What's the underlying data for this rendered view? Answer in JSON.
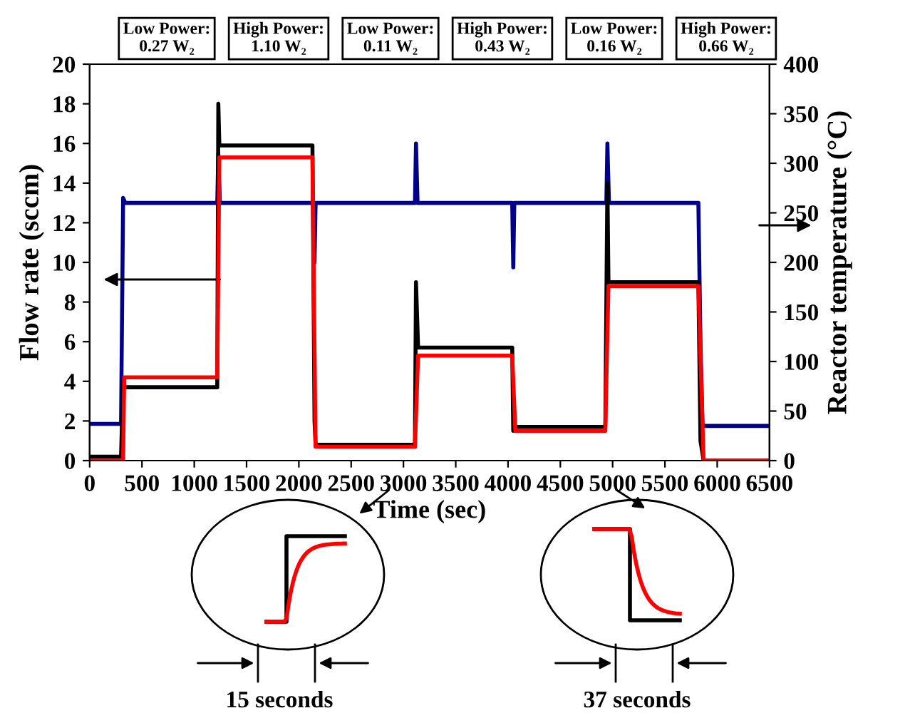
{
  "chart_data": {
    "type": "line",
    "xlabel": "Time (sec)",
    "ylabel": "Flow rate (sccm)",
    "y2label": "Reactor temperature (°C)",
    "xlim": [
      0,
      6500
    ],
    "xticks": [
      0,
      500,
      1000,
      1500,
      2000,
      2500,
      3000,
      3500,
      4000,
      4500,
      5000,
      5500,
      6000,
      6500
    ],
    "ylim": [
      0,
      20
    ],
    "yticks": [
      0,
      2,
      4,
      6,
      8,
      10,
      12,
      14,
      16,
      18,
      20
    ],
    "y2lim": [
      0,
      400
    ],
    "y2ticks": [
      0,
      50,
      100,
      150,
      200,
      250,
      300,
      350,
      400
    ],
    "grid": false,
    "legend": false,
    "series": [
      {
        "color": "#000000",
        "x": [
          0,
          300,
          320,
          330,
          1220,
          1230,
          1240,
          2130,
          2150,
          2160,
          3110,
          3120,
          3140,
          4040,
          4050,
          4070,
          4930,
          4950,
          4960,
          5820,
          5840,
          5870,
          6500
        ],
        "values": [
          0.2,
          0.2,
          4,
          3.7,
          3.7,
          18,
          15.9,
          15.9,
          2,
          0.8,
          0.8,
          9,
          5.7,
          5.7,
          1.5,
          1.7,
          1.7,
          14,
          9.0,
          9.0,
          1,
          0,
          0
        ]
      },
      {
        "color": "#ff0000",
        "x": [
          0,
          320,
          330,
          1220,
          1240,
          2130,
          2160,
          3110,
          3140,
          4040,
          4070,
          4930,
          4960,
          5820,
          5870,
          6500
        ],
        "values": [
          0,
          0,
          4.2,
          4.2,
          15.3,
          15.3,
          0.7,
          0.7,
          5.3,
          5.3,
          1.5,
          1.5,
          8.8,
          8.8,
          0,
          0
        ]
      },
      {
        "color": "#00008b",
        "axis": "y2",
        "x": [
          0,
          300,
          320,
          340,
          1220,
          1230,
          1245,
          2140,
          2150,
          2160,
          3110,
          3120,
          3135,
          4040,
          4050,
          4060,
          4940,
          4950,
          4965,
          5820,
          5840,
          5860,
          6500
        ],
        "values": [
          37,
          37,
          265,
          260,
          260,
          310,
          260,
          260,
          200,
          260,
          260,
          320,
          260,
          260,
          195,
          260,
          260,
          320,
          260,
          260,
          120,
          35,
          35
        ]
      }
    ],
    "annotations": [
      "Low Power:\n0.27 W₂",
      "High Power:\n1.10 W₂",
      "Low Power:\n0.11 W₂",
      "High Power:\n0.43 W₂",
      "Low Power:\n0.16 W₂",
      "High Power:\n0.66 W₂",
      "15 seconds",
      "37 seconds"
    ]
  }
}
